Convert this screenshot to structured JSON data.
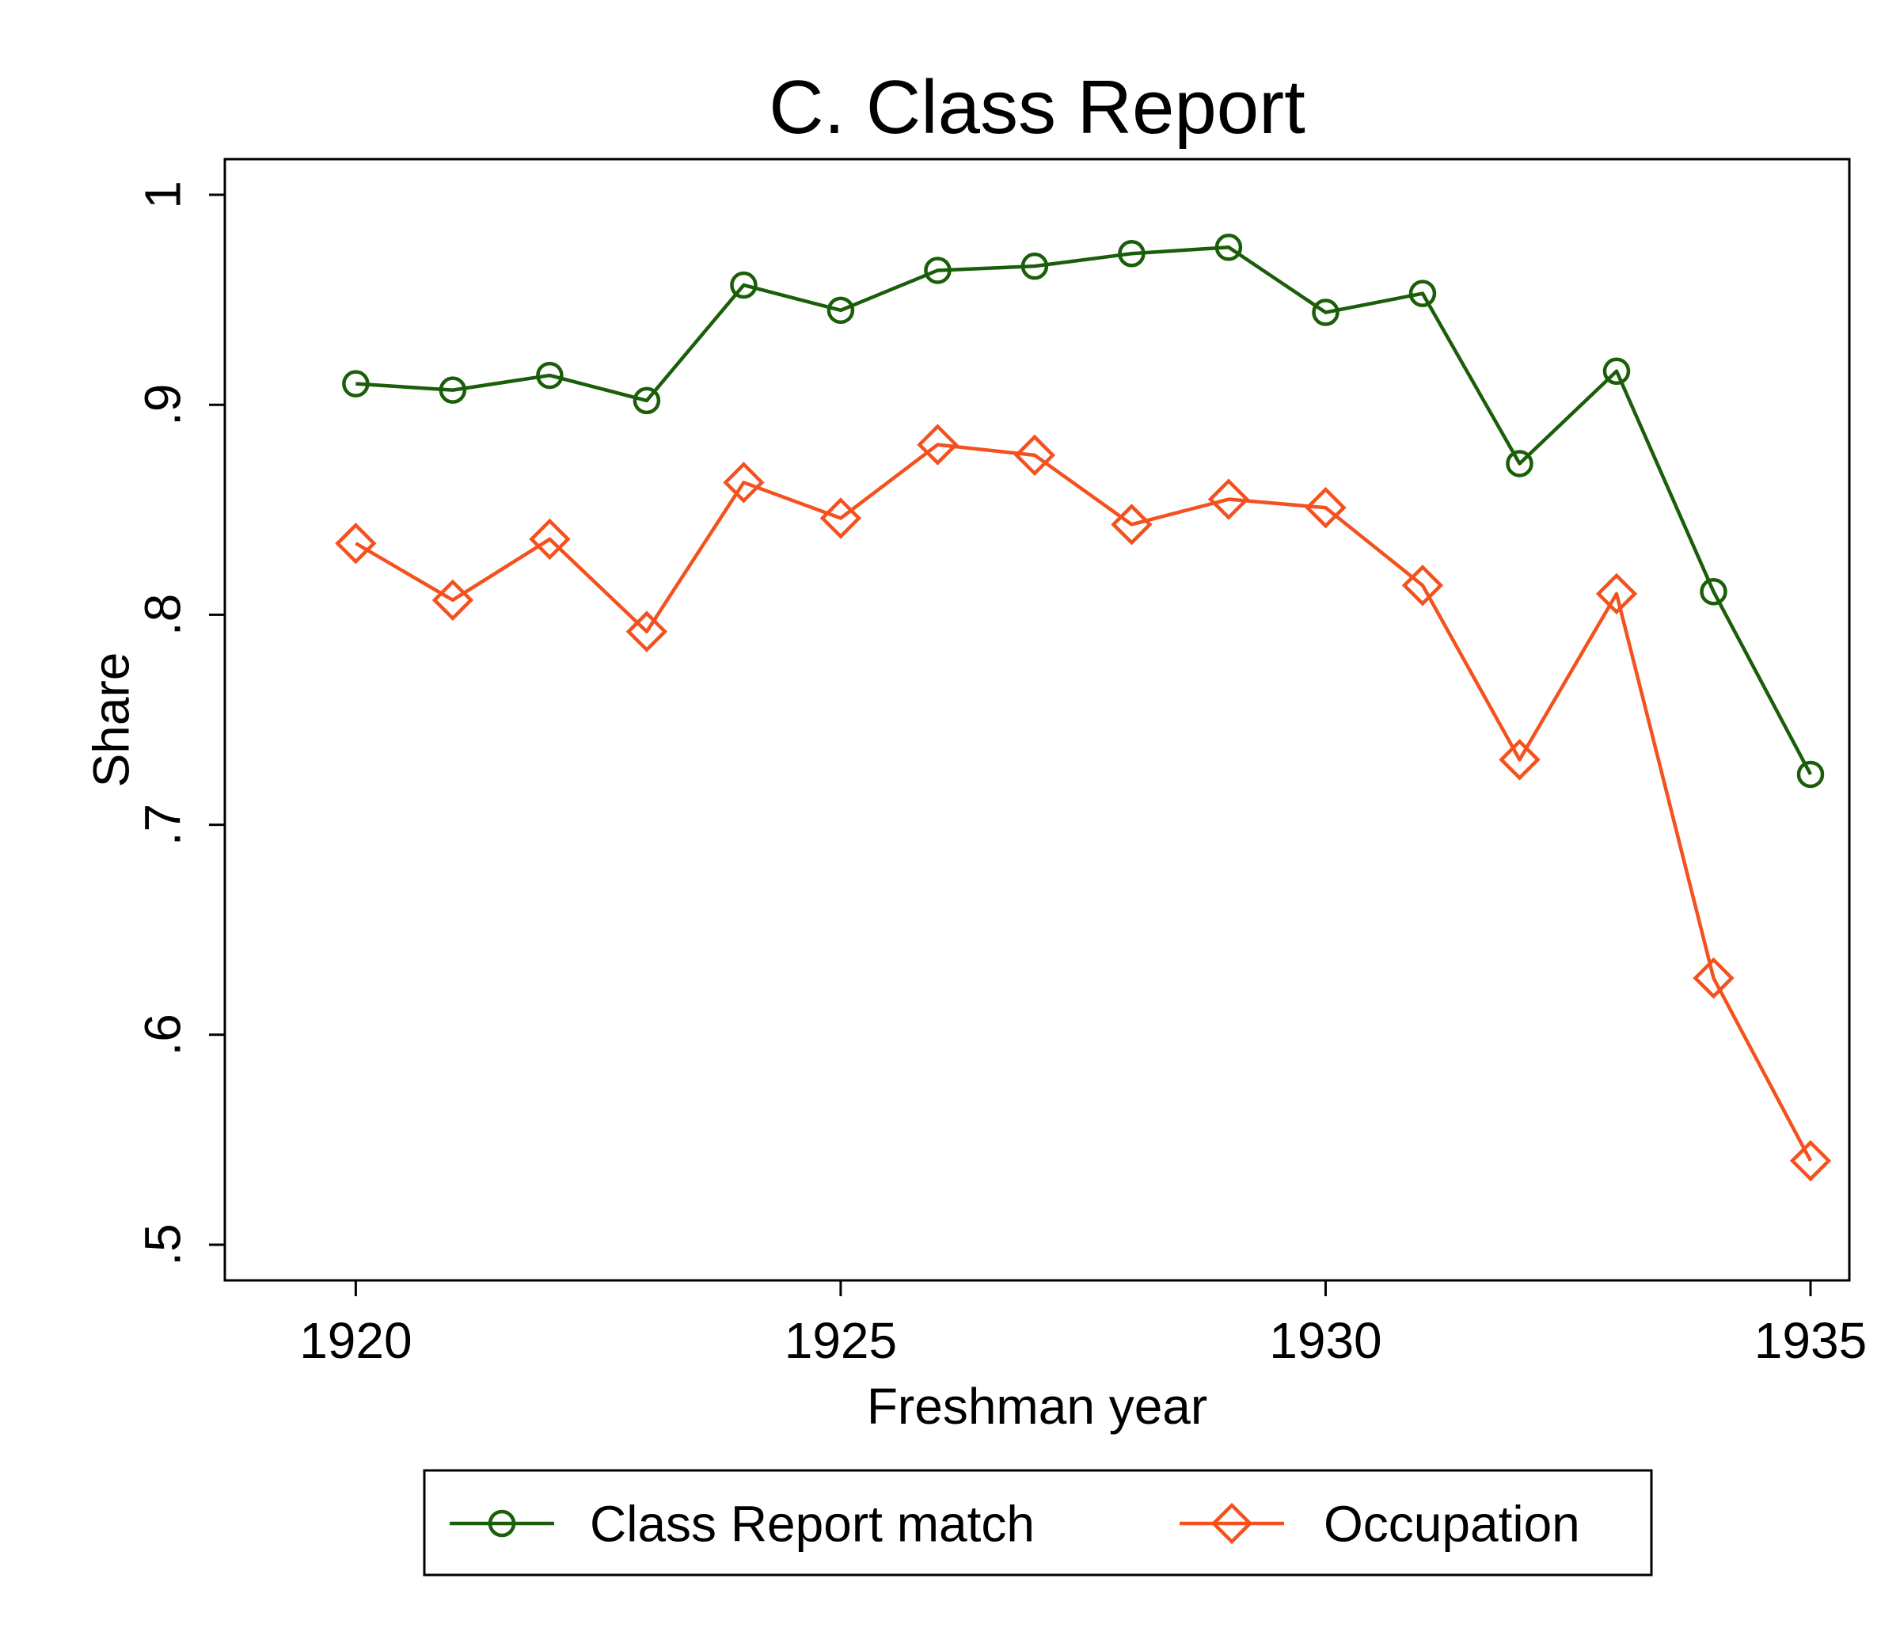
{
  "chart_data": {
    "type": "line",
    "title": "C. Class Report",
    "xlabel": "Freshman year",
    "ylabel": "Share",
    "x": [
      1920,
      1921,
      1922,
      1923,
      1924,
      1925,
      1926,
      1927,
      1928,
      1929,
      1930,
      1931,
      1932,
      1933,
      1934,
      1935
    ],
    "xlim": [
      1918.65,
      1935.4
    ],
    "ylim": [
      0.5,
      1.0
    ],
    "xticks": [
      1920,
      1925,
      1930,
      1935
    ],
    "xtick_labels": [
      "1920",
      "1925",
      "1930",
      "1935"
    ],
    "yticks": [
      0.5,
      0.6,
      0.7,
      0.8,
      0.9,
      1.0
    ],
    "ytick_labels": [
      ".5",
      ".6",
      ".7",
      ".8",
      ".9",
      "1"
    ],
    "grid": false,
    "legend_position": "bottom",
    "series": [
      {
        "name": "Class Report match",
        "color": "#1a5e0a",
        "marker": "circle",
        "values": [
          0.91,
          0.907,
          0.914,
          0.902,
          0.957,
          0.945,
          0.964,
          0.966,
          0.972,
          0.975,
          0.944,
          0.953,
          0.872,
          0.916,
          0.811,
          0.724
        ]
      },
      {
        "name": "Occupation",
        "color": "#f4511e",
        "marker": "diamond",
        "values": [
          0.834,
          0.807,
          0.836,
          0.792,
          0.863,
          0.846,
          0.881,
          0.876,
          0.843,
          0.855,
          0.851,
          0.814,
          0.731,
          0.81,
          0.627,
          0.54
        ]
      }
    ]
  }
}
